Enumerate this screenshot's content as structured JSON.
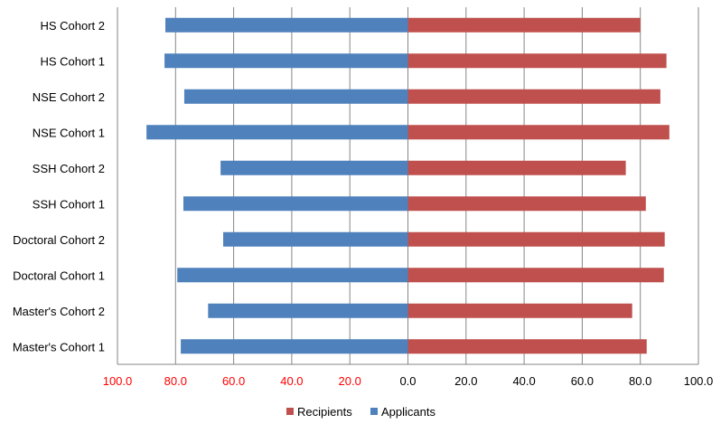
{
  "chart_data": {
    "type": "bar",
    "orientation": "horizontal",
    "layout": "butterfly",
    "categories": [
      "HS Cohort 2",
      "HS Cohort 1",
      "NSE Cohort 2",
      "NSE Cohort 1",
      "SSH Cohort 2",
      "SSH Cohort 1",
      "Doctoral Cohort 2",
      "Doctoral Cohort 1",
      "Master's Cohort 2",
      "Master's Cohort 1"
    ],
    "series": [
      {
        "name": "Recipients",
        "color": "#c0504d",
        "side": "right",
        "values": [
          80.0,
          89.0,
          86.9,
          90.0,
          75.0,
          81.9,
          88.4,
          88.1,
          77.2,
          82.2
        ]
      },
      {
        "name": "Applicants",
        "color": "#4f81bd",
        "side": "left",
        "values": [
          83.5,
          83.8,
          77.0,
          90.0,
          64.5,
          77.3,
          63.6,
          79.4,
          68.8,
          78.2
        ]
      }
    ],
    "xlim": [
      -100,
      100
    ],
    "xticks": [
      -100,
      -80,
      -60,
      -40,
      -20,
      0,
      20,
      40,
      60,
      80,
      100
    ],
    "xtick_labels": [
      "100.0",
      "80.0",
      "60.0",
      "40.0",
      "20.0",
      "0.0",
      "20.0",
      "40.0",
      "60.0",
      "80.0",
      "100.0"
    ],
    "negative_tick_color": "#ff0000",
    "grid": true,
    "legend": "bottom",
    "title": "",
    "xlabel": "",
    "ylabel": ""
  }
}
